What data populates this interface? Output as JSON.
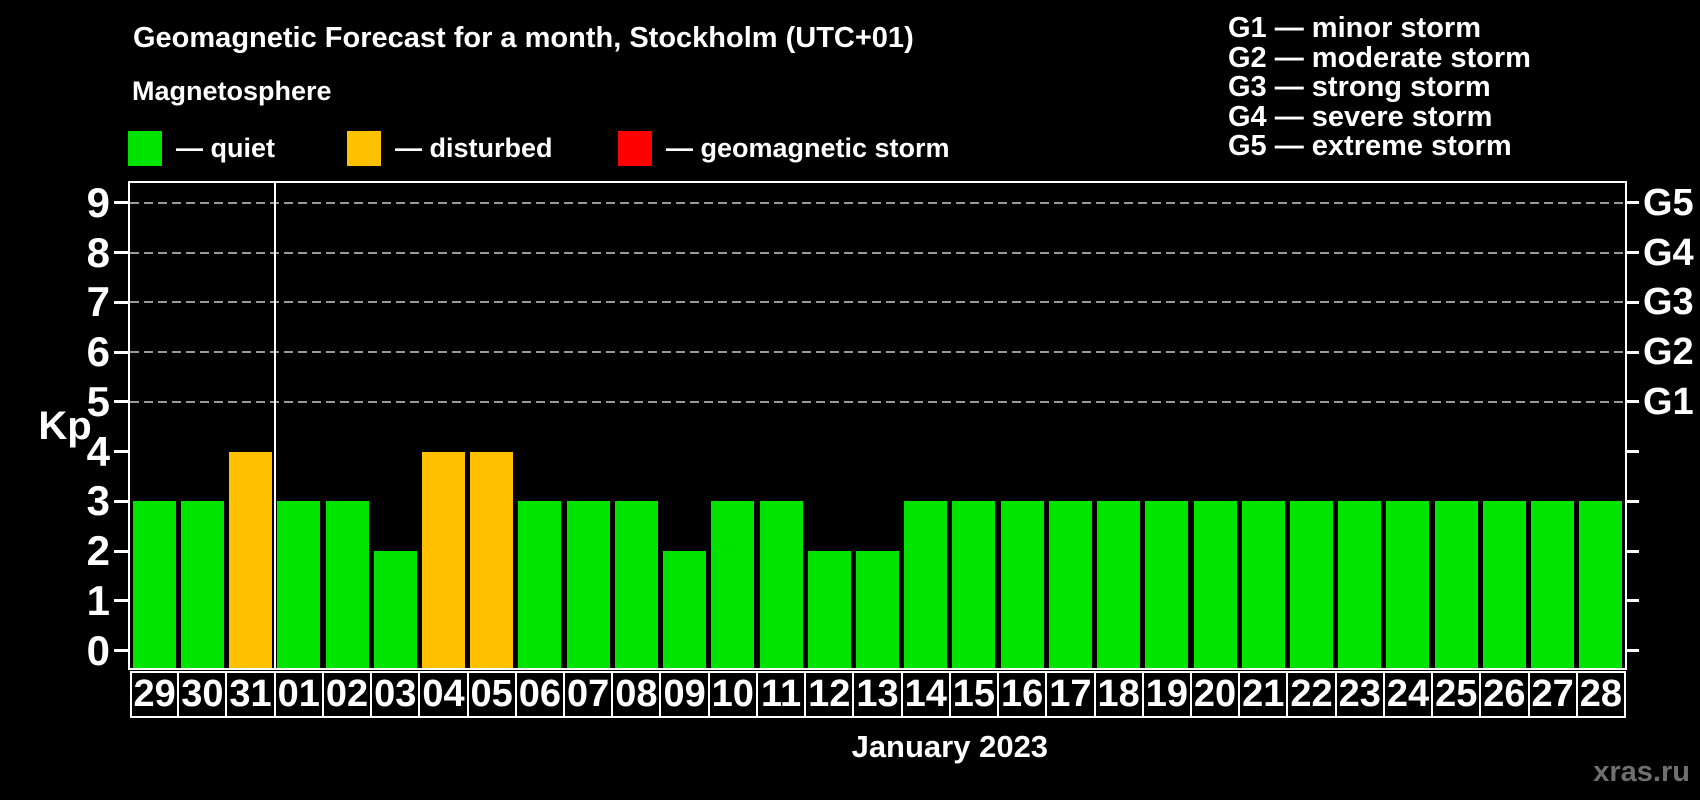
{
  "title": "Geomagnetic Forecast for a month, Stockholm (UTC+01)",
  "subtitle": "Magnetosphere",
  "legend": {
    "items": [
      {
        "name": "quiet",
        "label": "— quiet",
        "color": "#00e400"
      },
      {
        "name": "disturbed",
        "label": "— disturbed",
        "color": "#ffc000"
      },
      {
        "name": "storm",
        "label": "— geomagnetic storm",
        "color": "#ff0000"
      }
    ]
  },
  "g_legend": {
    "lines": [
      "G1 — minor storm",
      "G2 — moderate storm",
      "G3 — strong storm",
      "G4 — severe storm",
      "G5 — extreme storm"
    ]
  },
  "watermark": "xras.ru",
  "colors": {
    "background": "#000000",
    "text": "#ffffff",
    "quiet": "#00e400",
    "disturbed": "#ffc000",
    "storm": "#ff0000",
    "grid": "#999999",
    "axis": "#ffffff",
    "watermark": "#6f6f6f"
  },
  "chart_data": {
    "type": "bar",
    "title": "Geomagnetic Forecast for a month, Stockholm (UTC+01)",
    "subtitle": "Magnetosphere",
    "xlabel": "January 2023",
    "ylabel": "Kp",
    "ylim": [
      0,
      9
    ],
    "yticks": [
      0,
      1,
      2,
      3,
      4,
      5,
      6,
      7,
      8,
      9
    ],
    "grid_levels": [
      5,
      6,
      7,
      8,
      9
    ],
    "grid_style": "dashed",
    "legend_position": "top-left",
    "categories": [
      "29",
      "30",
      "31",
      "01",
      "02",
      "03",
      "04",
      "05",
      "06",
      "07",
      "08",
      "09",
      "10",
      "11",
      "12",
      "13",
      "14",
      "15",
      "16",
      "17",
      "18",
      "19",
      "20",
      "21",
      "22",
      "23",
      "24",
      "25",
      "26",
      "27",
      "28"
    ],
    "values": [
      3,
      3,
      4,
      3,
      3,
      2,
      4,
      4,
      3,
      3,
      3,
      2,
      3,
      3,
      2,
      2,
      3,
      3,
      3,
      3,
      3,
      3,
      3,
      3,
      3,
      3,
      3,
      3,
      3,
      3,
      3
    ],
    "states": [
      "quiet",
      "quiet",
      "disturbed",
      "quiet",
      "quiet",
      "quiet",
      "disturbed",
      "disturbed",
      "quiet",
      "quiet",
      "quiet",
      "quiet",
      "quiet",
      "quiet",
      "quiet",
      "quiet",
      "quiet",
      "quiet",
      "quiet",
      "quiet",
      "quiet",
      "quiet",
      "quiet",
      "quiet",
      "quiet",
      "quiet",
      "quiet",
      "quiet",
      "quiet",
      "quiet",
      "quiet"
    ],
    "state_rule": "Kp<4 quiet (green), Kp=4 disturbed (orange), Kp>=5 geomagnetic storm (red)",
    "month_boundary_after_index": 2,
    "right_axis_labels": [
      {
        "kp": 5,
        "label": "G1"
      },
      {
        "kp": 6,
        "label": "G2"
      },
      {
        "kp": 7,
        "label": "G3"
      },
      {
        "kp": 8,
        "label": "G4"
      },
      {
        "kp": 9,
        "label": "G5"
      }
    ]
  }
}
